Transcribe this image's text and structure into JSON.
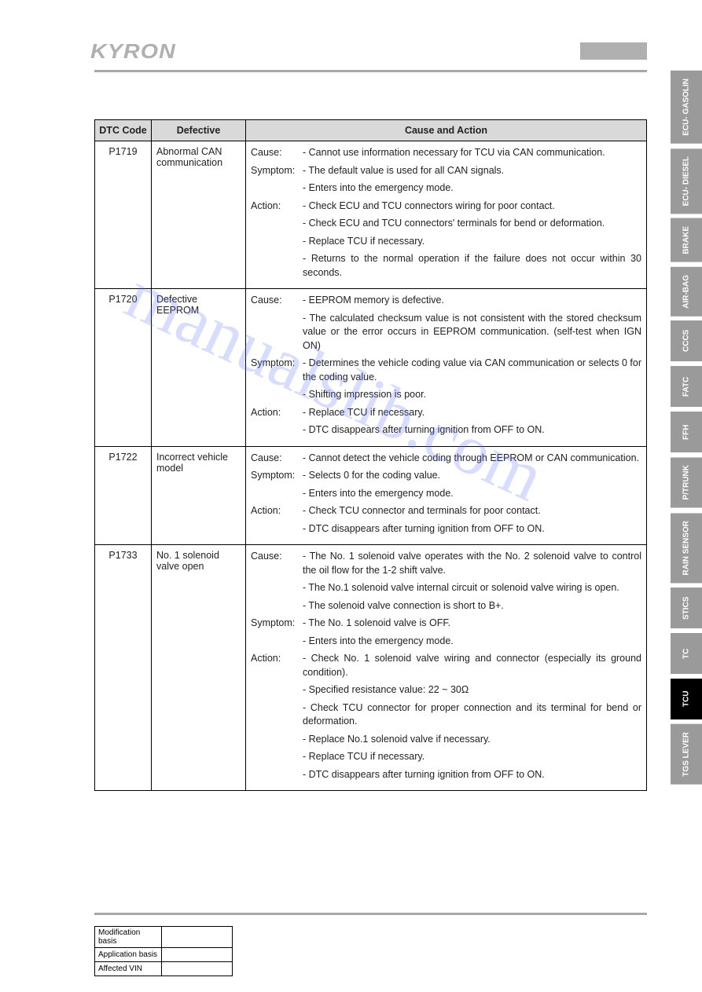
{
  "brand": "KYRON",
  "watermark": "manualslib.com",
  "table": {
    "headers": {
      "c1": "DTC Code",
      "c2": "Defective",
      "c3": "Cause and Action"
    },
    "rows": [
      {
        "code": "P1719",
        "defective": "Abnormal CAN communication",
        "items": [
          {
            "label": "Cause:",
            "text": "Cannot use information necessary for TCU via CAN communication."
          },
          {
            "label": "Symptom:",
            "text": "The default value is used for all CAN signals."
          },
          {
            "label": "",
            "text": "Enters into the emergency mode."
          },
          {
            "label": "Action:",
            "text": "Check ECU and TCU connectors wiring for poor contact."
          },
          {
            "label": "",
            "text": "Check ECU and TCU connectors' terminals for bend or deformation."
          },
          {
            "label": "",
            "text": "Replace TCU if necessary."
          },
          {
            "label": "",
            "text": "Returns to the normal operation if the failure does not occur within 30 seconds."
          }
        ]
      },
      {
        "code": "P1720",
        "defective": "Defective EEPROM",
        "items": [
          {
            "label": "Cause:",
            "text": "EEPROM memory is defective."
          },
          {
            "label": "",
            "text": "The calculated checksum value is not consistent with the stored checksum value or the error occurs in EEPROM communication. (self-test when IGN ON)"
          },
          {
            "label": "Symptom:",
            "text": "Determines the vehicle coding value via CAN communication or selects 0 for the coding value."
          },
          {
            "label": "",
            "text": "Shifting impression is poor."
          },
          {
            "label": "Action:",
            "text": "Replace TCU if necessary."
          },
          {
            "label": "",
            "text": "DTC disappears after turning ignition from OFF to ON."
          }
        ]
      },
      {
        "code": "P1722",
        "defective": "Incorrect vehicle model",
        "items": [
          {
            "label": "Cause:",
            "text": "Cannot detect the vehicle coding through EEPROM or CAN communication."
          },
          {
            "label": "Symptom:",
            "text": "Selects 0 for the coding value."
          },
          {
            "label": "",
            "text": "Enters into the emergency mode."
          },
          {
            "label": "Action:",
            "text": "Check TCU connector and terminals for poor contact."
          },
          {
            "label": "",
            "text": "DTC disappears after turning ignition from OFF to ON."
          }
        ]
      },
      {
        "code": "P1733",
        "defective": "No. 1 solenoid valve open",
        "items": [
          {
            "label": "Cause:",
            "text": "The No. 1 solenoid valve operates with the No. 2 solenoid valve to control the oil flow for the 1-2 shift valve."
          },
          {
            "label": "",
            "text": "The No.1 solenoid valve internal circuit or solenoid valve wiring is open."
          },
          {
            "label": "",
            "text": "The solenoid valve connection is short to B+."
          },
          {
            "label": "Symptom:",
            "text": "The No. 1 solenoid valve is OFF."
          },
          {
            "label": "",
            "text": "Enters into the emergency mode."
          },
          {
            "label": "Action:",
            "text": "Check No. 1 solenoid valve wiring and connector (especially its ground condition)."
          },
          {
            "label": "",
            "text": "Specified resistance value: 22 ~ 30Ω"
          },
          {
            "label": "",
            "text": "Check TCU connector for proper connection and its terminal for bend or deformation."
          },
          {
            "label": "",
            "text": "Replace No.1 solenoid valve if necessary."
          },
          {
            "label": "",
            "text": "Replace TCU if necessary."
          },
          {
            "label": "",
            "text": "DTC disappears after turning ignition from OFF to ON."
          }
        ]
      }
    ]
  },
  "side_tabs": [
    {
      "label": "ECU-\nGASOLIN",
      "active": false
    },
    {
      "label": "ECU-\nDIESEL",
      "active": false
    },
    {
      "label": "BRAKE",
      "active": false
    },
    {
      "label": "AIR-BAG",
      "active": false
    },
    {
      "label": "CCCS",
      "active": false
    },
    {
      "label": "FATC",
      "active": false
    },
    {
      "label": "FFH",
      "active": false
    },
    {
      "label": "P/TRUNK",
      "active": false
    },
    {
      "label": "RAIN\nSENSOR",
      "active": false
    },
    {
      "label": "STICS",
      "active": false
    },
    {
      "label": "TC",
      "active": false
    },
    {
      "label": "TCU",
      "active": true
    },
    {
      "label": "TGS\nLEVER",
      "active": false
    }
  ],
  "meta": {
    "r1": "Modification basis",
    "r2": "Application basis",
    "r3": "Affected VIN"
  },
  "colors": {
    "header_bg": "#d9d9d9",
    "tab_bg": "#9a9a9a",
    "tab_active_bg": "#000000",
    "rule": "#a8a8a8",
    "brand": "#b0b0b0"
  }
}
